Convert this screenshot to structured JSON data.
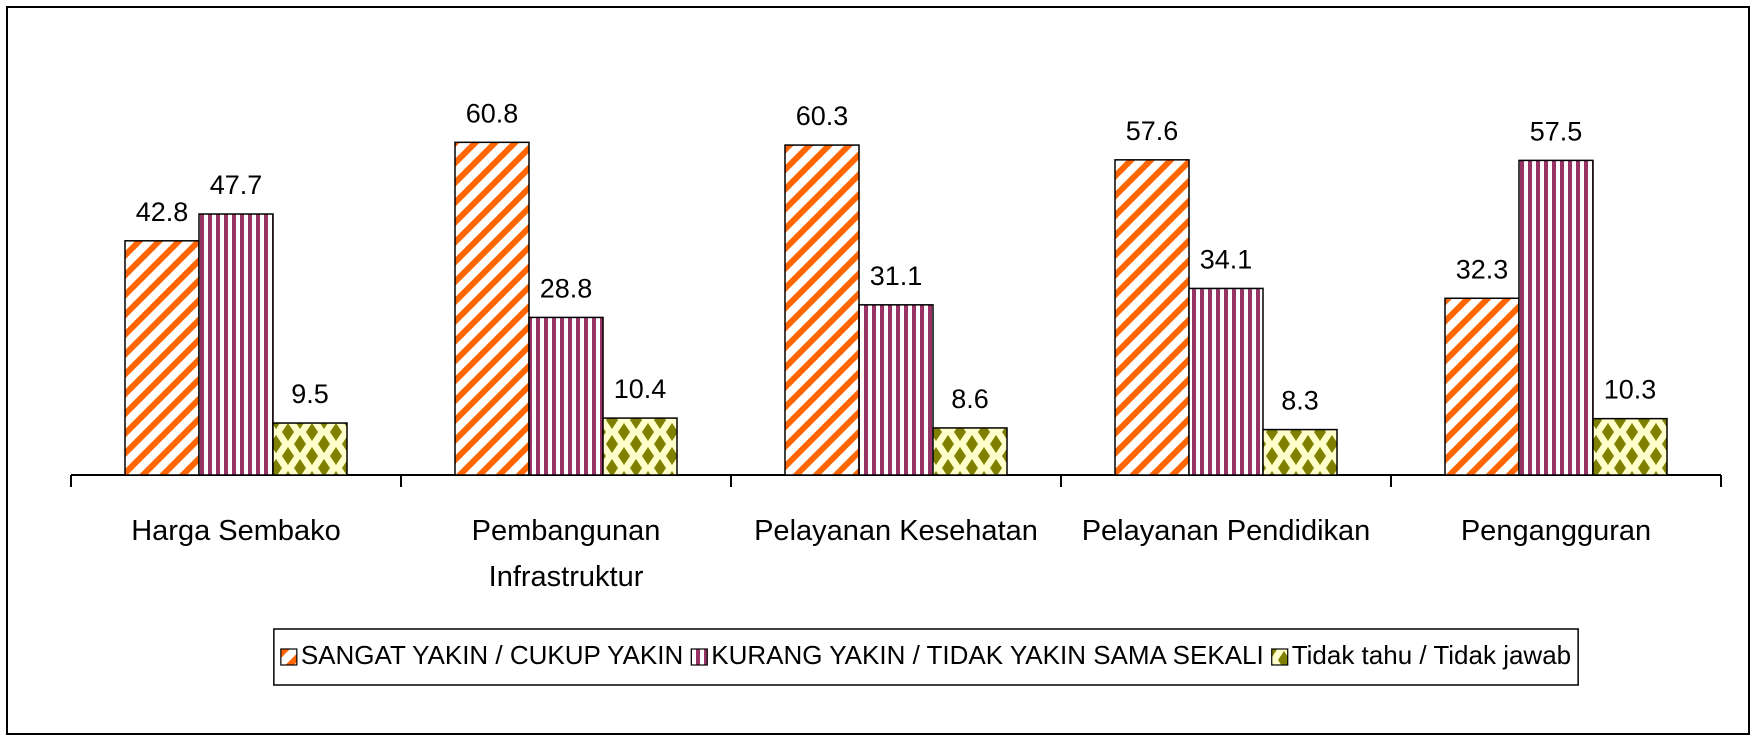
{
  "chart_data": {
    "type": "bar",
    "categories": [
      "Harga Sembako",
      "Pembangunan Infrastruktur",
      "Pelayanan Kesehatan",
      "Pelayanan Pendidikan",
      "Pengangguran"
    ],
    "series": [
      {
        "name": "SANGAT YAKIN / CUKUP YAKIN",
        "color": "#FF6600",
        "values": [
          42.8,
          60.8,
          60.3,
          57.6,
          32.3
        ]
      },
      {
        "name": "KURANG YAKIN / TIDAK YAKIN SAMA SEKALI",
        "color": "#993366",
        "values": [
          47.7,
          28.8,
          31.1,
          34.1,
          57.5
        ]
      },
      {
        "name": "Tidak tahu / Tidak jawab",
        "color": "#808000",
        "values": [
          9.5,
          10.4,
          8.6,
          8.3,
          10.3
        ]
      }
    ],
    "ylim": [
      0,
      70
    ],
    "legend": "bottom"
  }
}
